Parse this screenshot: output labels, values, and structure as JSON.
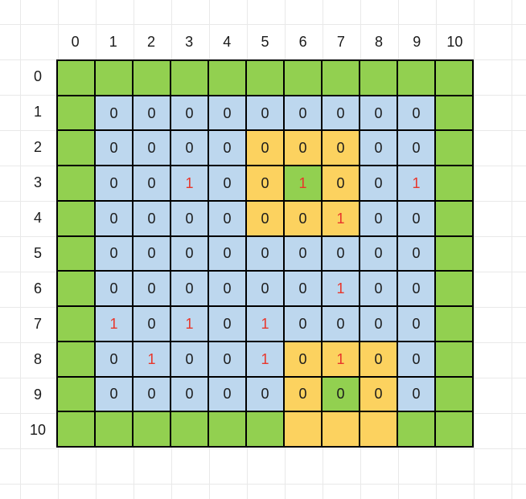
{
  "sheet": {
    "description": "11x11 colored grid matrix on a spreadsheet background",
    "column_headers": [
      "0",
      "1",
      "2",
      "3",
      "4",
      "5",
      "6",
      "7",
      "8",
      "9",
      "10"
    ],
    "row_headers": [
      "0",
      "1",
      "2",
      "3",
      "4",
      "5",
      "6",
      "7",
      "8",
      "9",
      "10"
    ],
    "colors": {
      "green": "#92d050",
      "blue": "#bdd7ee",
      "yellow": "#fcd25f",
      "red_text": "#e8362b",
      "dark_text": "#1b1b1b",
      "header_text": "#1a1a1a",
      "cell_border": "#000000",
      "sheet_gridline": "#e9e9e9"
    },
    "cell_legend": {
      "g": {
        "bg": "green",
        "text": ""
      },
      "y": {
        "bg": "yellow",
        "text": ""
      },
      "b0": {
        "bg": "blue",
        "text": "0",
        "text_color": "dark_text"
      },
      "b1": {
        "bg": "blue",
        "text": "1",
        "text_color": "red_text"
      },
      "y0": {
        "bg": "yellow",
        "text": "0",
        "text_color": "dark_text"
      },
      "y1": {
        "bg": "yellow",
        "text": "1",
        "text_color": "red_text"
      },
      "g0": {
        "bg": "green",
        "text": "0",
        "text_color": "dark_text"
      },
      "g1": {
        "bg": "green",
        "text": "1",
        "text_color": "red_text"
      }
    },
    "grid_rows": [
      [
        "g",
        "g",
        "g",
        "g",
        "g",
        "g",
        "g",
        "g",
        "g",
        "g",
        "g"
      ],
      [
        "g",
        "b0",
        "b0",
        "b0",
        "b0",
        "b0",
        "b0",
        "b0",
        "b0",
        "b0",
        "g"
      ],
      [
        "g",
        "b0",
        "b0",
        "b0",
        "b0",
        "y0",
        "y0",
        "y0",
        "b0",
        "b0",
        "g"
      ],
      [
        "g",
        "b0",
        "b0",
        "b1",
        "b0",
        "y0",
        "g1",
        "y0",
        "b0",
        "b1",
        "g"
      ],
      [
        "g",
        "b0",
        "b0",
        "b0",
        "b0",
        "y0",
        "y0",
        "y1",
        "b0",
        "b0",
        "g"
      ],
      [
        "g",
        "b0",
        "b0",
        "b0",
        "b0",
        "b0",
        "b0",
        "b0",
        "b0",
        "b0",
        "g"
      ],
      [
        "g",
        "b0",
        "b0",
        "b0",
        "b0",
        "b0",
        "b0",
        "b1",
        "b0",
        "b0",
        "g"
      ],
      [
        "g",
        "b1",
        "b0",
        "b1",
        "b0",
        "b1",
        "b0",
        "b0",
        "b0",
        "b0",
        "g"
      ],
      [
        "g",
        "b0",
        "b1",
        "b0",
        "b0",
        "b1",
        "y0",
        "y1",
        "y0",
        "b0",
        "g"
      ],
      [
        "g",
        "b0",
        "b0",
        "b0",
        "b0",
        "b0",
        "y0",
        "g0",
        "y0",
        "b0",
        "g"
      ],
      [
        "g",
        "g",
        "g",
        "g",
        "g",
        "g",
        "y",
        "y",
        "y",
        "g",
        "g"
      ]
    ]
  }
}
